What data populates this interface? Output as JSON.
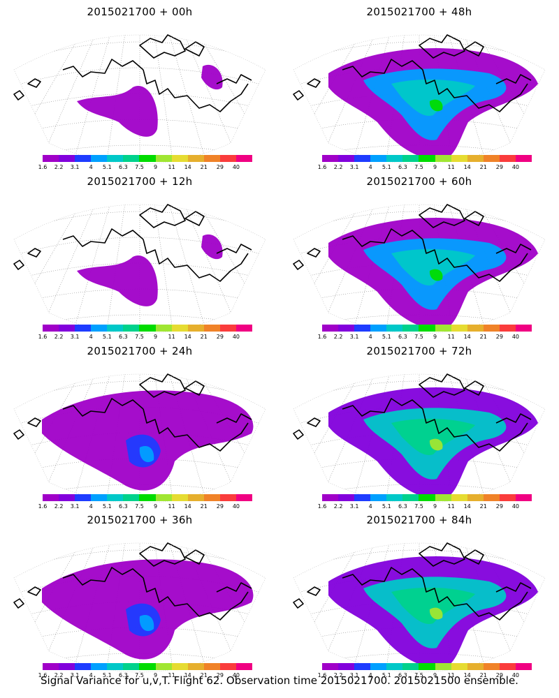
{
  "caption": "Signal Variance for u,v,T. Flight 62. Observation time 2015021700. 2015021500 ensemble.",
  "colorbar": {
    "colors": [
      "#a000c8",
      "#8200dc",
      "#1e3cff",
      "#00a0ff",
      "#00c8c8",
      "#00d28c",
      "#00dc00",
      "#a0e632",
      "#e6dc32",
      "#e6af2d",
      "#f08228",
      "#fa3c3c",
      "#f00082"
    ],
    "labels": [
      "1.6",
      "2.2",
      "3.1",
      "4",
      "5.1",
      "6.3",
      "7.5",
      "9",
      "11",
      "14",
      "21",
      "29",
      "40"
    ]
  },
  "panels": [
    {
      "title": "2015021700 + 00h",
      "level": 1
    },
    {
      "title": "2015021700 + 48h",
      "level": 5
    },
    {
      "title": "2015021700 + 12h",
      "level": 2
    },
    {
      "title": "2015021700 + 60h",
      "level": 6
    },
    {
      "title": "2015021700 + 24h",
      "level": 3
    },
    {
      "title": "2015021700 + 72h",
      "level": 7
    },
    {
      "title": "2015021700 + 36h",
      "level": 4
    },
    {
      "title": "2015021700 + 84h",
      "level": 8
    }
  ]
}
